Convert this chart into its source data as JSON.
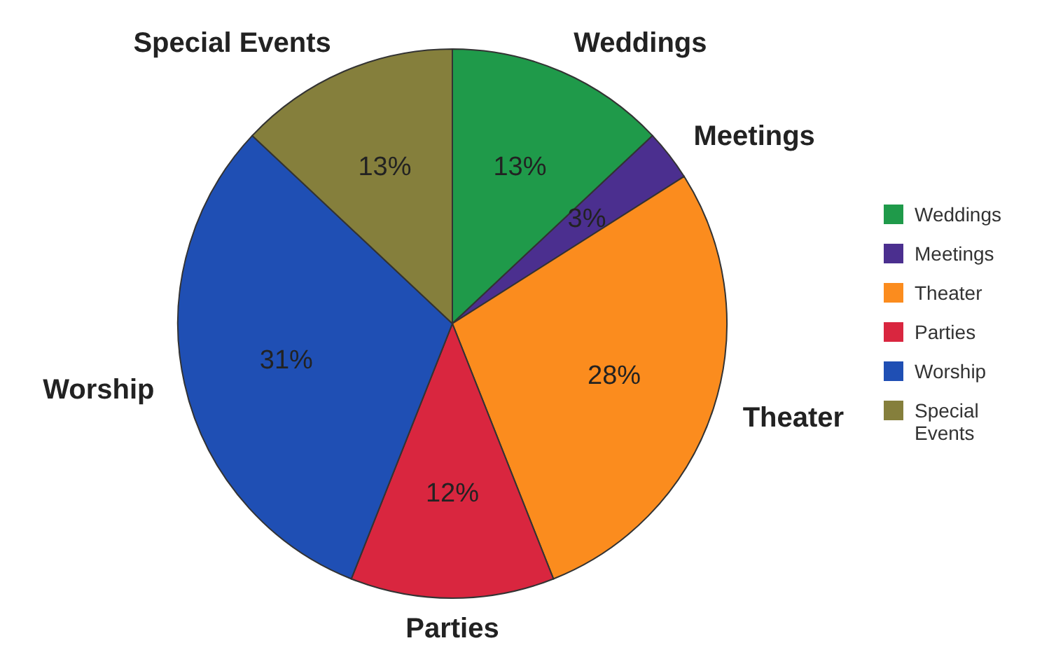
{
  "chart_data": {
    "type": "pie",
    "categories": [
      "Weddings",
      "Meetings",
      "Theater",
      "Parties",
      "Worship",
      "Special Events"
    ],
    "values": [
      13,
      3,
      28,
      12,
      31,
      13
    ],
    "value_labels": [
      "13%",
      "3%",
      "28%",
      "12%",
      "31%",
      "13%"
    ],
    "colors": [
      "#1f9a4a",
      "#4b2f8f",
      "#fb8c1e",
      "#d9263f",
      "#1f4fb4",
      "#857f3c"
    ],
    "legend": "right"
  }
}
